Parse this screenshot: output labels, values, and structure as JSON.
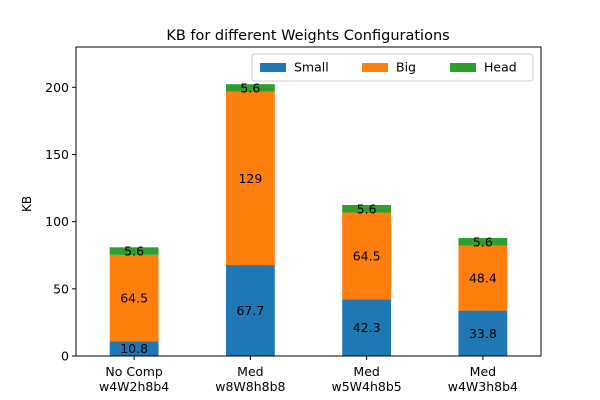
{
  "chart_data": {
    "type": "bar",
    "stacked": true,
    "title": "KB for different Weights Configurations",
    "xlabel": "",
    "ylabel": "KB",
    "ylim": [
      0,
      230
    ],
    "yticks": [
      0,
      50,
      100,
      150,
      200
    ],
    "categories": [
      [
        "No Comp",
        "w4W2h8b4"
      ],
      [
        "Med",
        "w8W8h8b8"
      ],
      [
        "Med",
        "w5W4h8b5"
      ],
      [
        "Med",
        "w4W3h8b4"
      ]
    ],
    "series": [
      {
        "name": "Small",
        "color": "#1f77b4",
        "values": [
          10.8,
          67.7,
          42.3,
          33.8
        ],
        "labels": [
          "10.8",
          "67.7",
          "42.3",
          "33.8"
        ]
      },
      {
        "name": "Big",
        "color": "#ff7f0e",
        "values": [
          64.5,
          129,
          64.5,
          48.4
        ],
        "labels": [
          "64.5",
          "129",
          "64.5",
          "48.4"
        ]
      },
      {
        "name": "Head",
        "color": "#2ca02c",
        "values": [
          5.6,
          5.6,
          5.6,
          5.6
        ],
        "labels": [
          "5.6",
          "5.6",
          "5.6",
          "5.6"
        ]
      }
    ],
    "legend": "top-right",
    "grid": false
  }
}
